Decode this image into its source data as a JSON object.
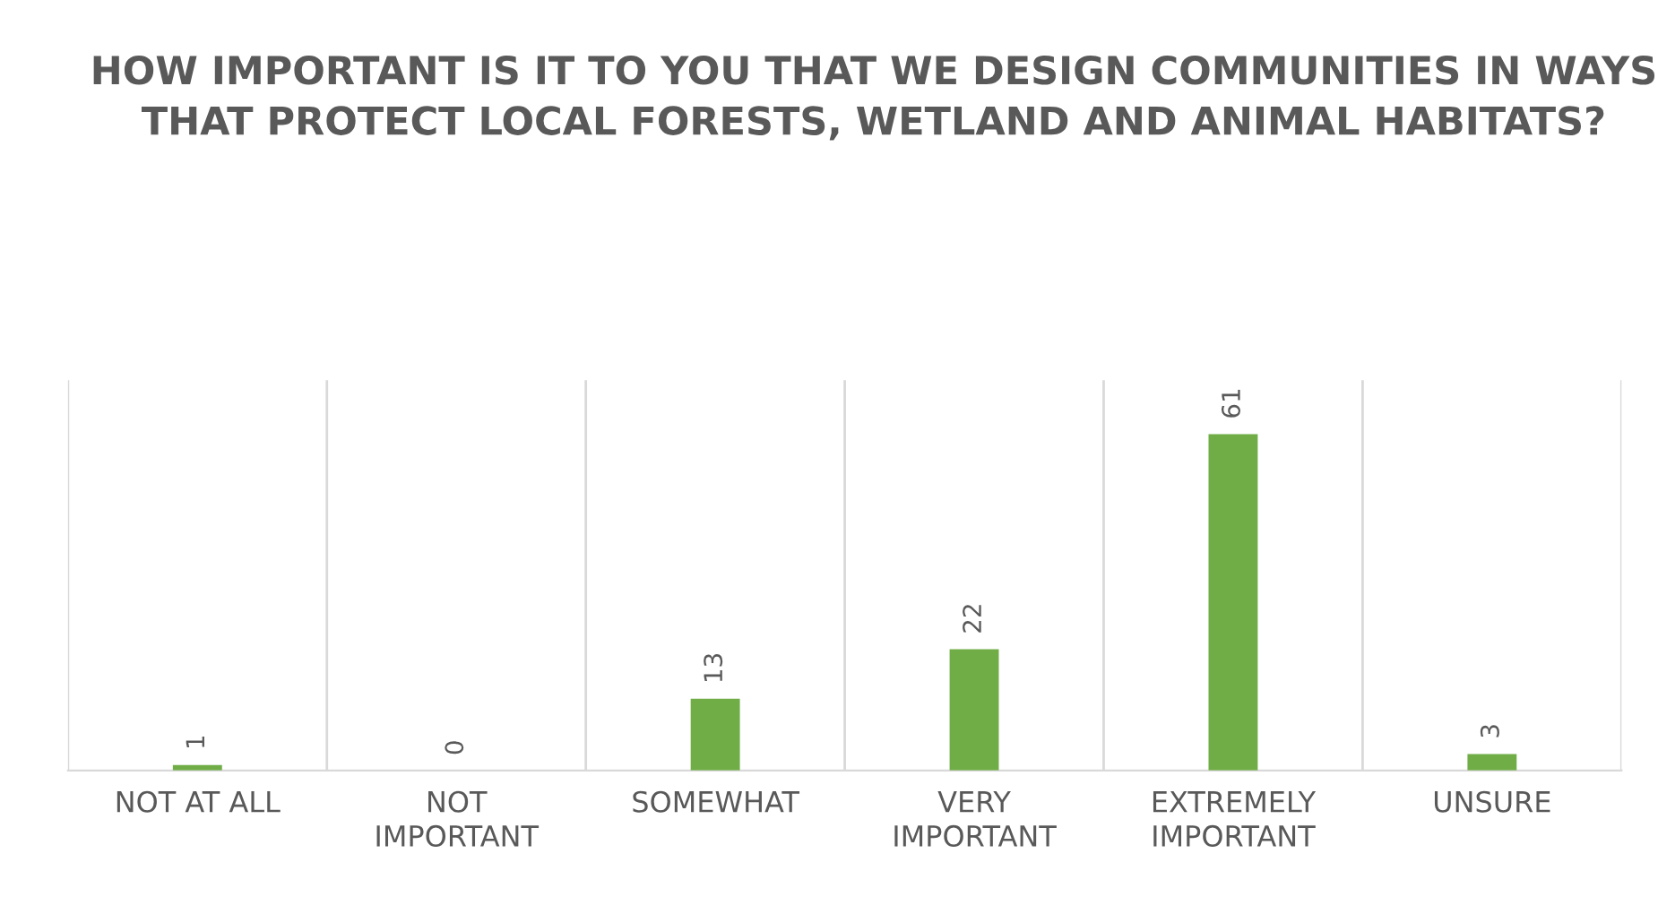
{
  "chart_data": {
    "type": "bar",
    "title": "HOW IMPORTANT IS IT TO YOU THAT WE DESIGN COMMUNITIES IN WAYS THAT PROTECT LOCAL FORESTS, WETLAND AND ANIMAL HABITATS?",
    "categories": [
      "NOT AT ALL",
      "NOT IMPORTANT",
      "SOMEWHAT",
      "VERY IMPORTANT",
      "EXTREMELY IMPORTANT",
      "UNSURE"
    ],
    "values": [
      1,
      0,
      13,
      22,
      61,
      3
    ],
    "color": "#70ad47",
    "data_labels": true,
    "grid": "x",
    "legend": false
  }
}
